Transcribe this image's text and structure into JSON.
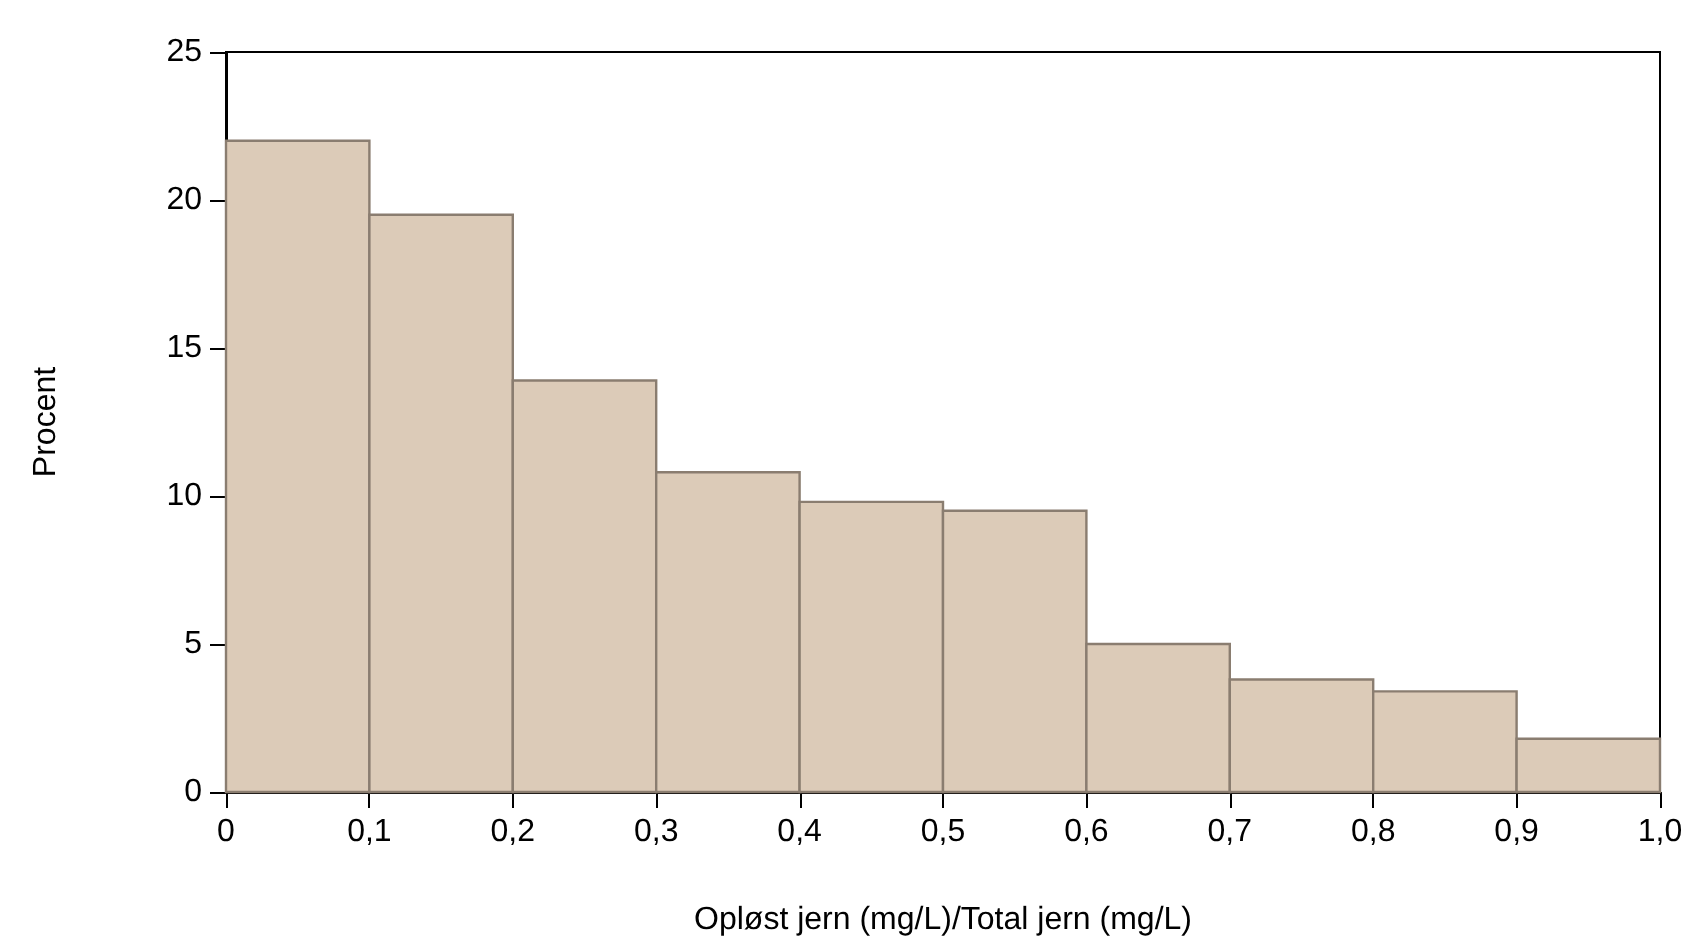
{
  "chart_data": {
    "type": "histogram",
    "xlabel": "Opløst jern (mg/L)/Total jern (mg/L)",
    "ylabel": "Procent",
    "bins": [
      0,
      0.1,
      0.2,
      0.3,
      0.4,
      0.5,
      0.6,
      0.7,
      0.8,
      0.9,
      1.0
    ],
    "values": [
      22.0,
      19.5,
      13.9,
      10.8,
      9.8,
      9.5,
      5.0,
      3.8,
      3.4,
      1.8
    ],
    "color": "#dccbb8",
    "xlim": [
      0,
      1.0
    ],
    "xticks": [
      0,
      {
        "value": 0.1,
        "label": "0,1"
      },
      {
        "value": 0.2,
        "label": "0,2"
      },
      {
        "value": 0.3,
        "label": "0,3"
      },
      {
        "value": 0.4,
        "label": "0,4"
      },
      {
        "value": 0.5,
        "label": "0,5"
      },
      {
        "value": 0.6,
        "label": "0,6"
      },
      {
        "value": 0.7,
        "label": "0,7"
      },
      {
        "value": 0.8,
        "label": "0,8"
      },
      {
        "value": 0.9,
        "label": "0,9"
      },
      {
        "value": 1.0,
        "label": "1,0"
      }
    ],
    "ylim": [
      0,
      25
    ],
    "yticks": [
      0,
      5,
      10,
      15,
      20,
      25
    ],
    "grid": false
  }
}
